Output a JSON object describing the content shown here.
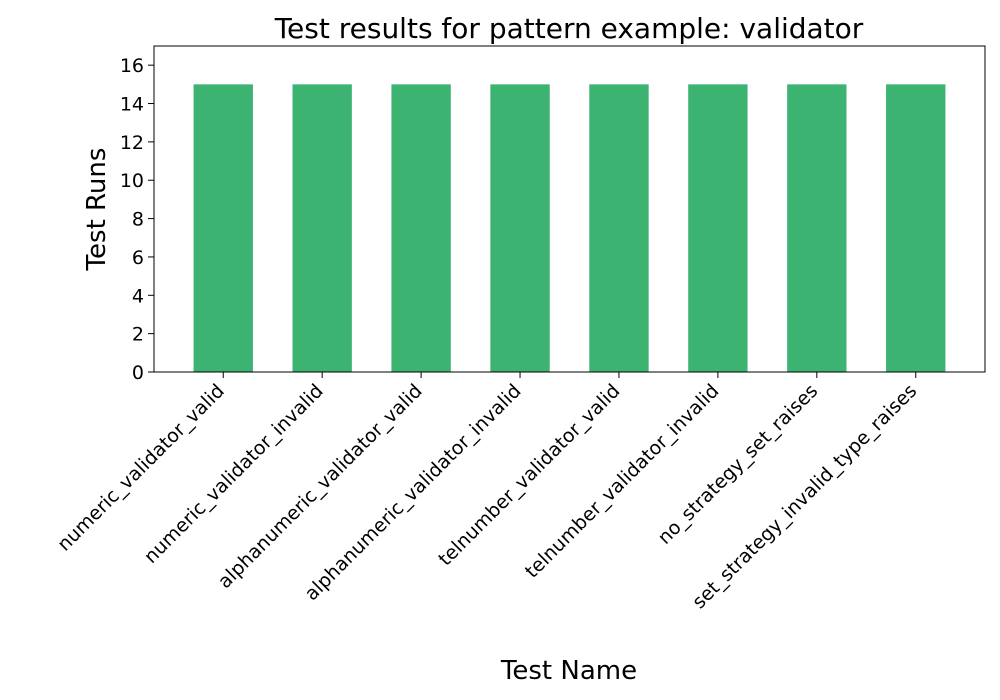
{
  "chart_data": {
    "type": "bar",
    "title": "Test results for pattern example: validator",
    "xlabel": "Test Name",
    "ylabel": "Test Runs",
    "categories": [
      "numeric_validator_valid",
      "numeric_validator_invalid",
      "alphanumeric_validator_valid",
      "alphanumeric_validator_invalid",
      "telnumber_validator_valid",
      "telnumber_validator_invalid",
      "no_strategy_set_raises",
      "set_strategy_invalid_type_raises"
    ],
    "values": [
      15,
      15,
      15,
      15,
      15,
      15,
      15,
      15
    ],
    "ylim": [
      0,
      17
    ],
    "yticks": [
      0,
      2,
      4,
      6,
      8,
      10,
      12,
      14,
      16
    ],
    "bar_color": "#3cb371",
    "grid": false,
    "legend": false
  }
}
